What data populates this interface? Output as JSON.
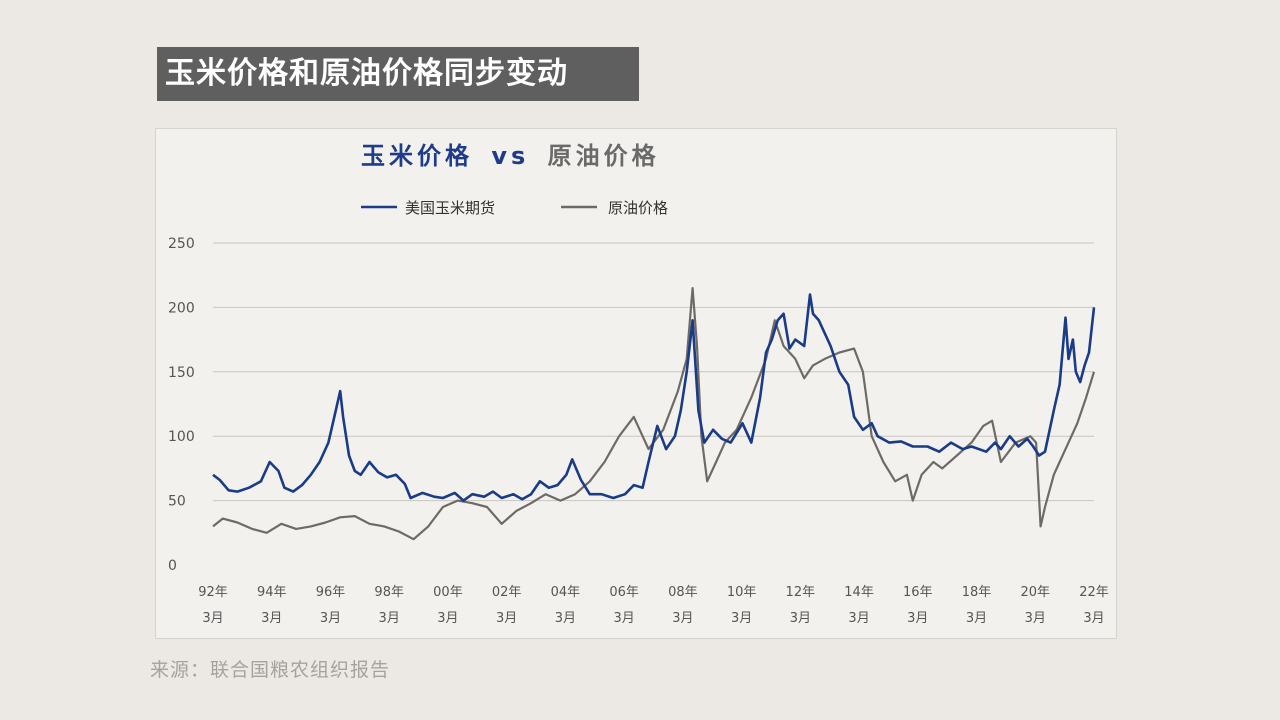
{
  "header": {
    "title": "玉米价格和原油价格同步变动"
  },
  "footer": {
    "source": "来源：联合国粮农组织报告"
  },
  "colors": {
    "corn": "#1a3b86",
    "oil": "#6e6a66",
    "grid": "#c9c6c1",
    "title_blue": "#1f3c8a",
    "title_gray": "#6a6a6a"
  },
  "chart_data": {
    "type": "line",
    "title_part1": "玉米价格",
    "title_vs": "vs",
    "title_part2": "原油价格",
    "xlabel": "",
    "ylabel": "",
    "ylim": [
      0,
      250
    ],
    "xlim": [
      1992.17,
      2022.17
    ],
    "yticks": [
      0,
      50,
      100,
      150,
      200,
      250
    ],
    "grid": true,
    "legend": "top-left",
    "xtick_labels": [
      {
        "year": 1992.17,
        "top": "92年",
        "bottom": "3月"
      },
      {
        "year": 1994.17,
        "top": "94年",
        "bottom": "3月"
      },
      {
        "year": 1996.17,
        "top": "96年",
        "bottom": "3月"
      },
      {
        "year": 1998.17,
        "top": "98年",
        "bottom": "3月"
      },
      {
        "year": 2000.17,
        "top": "00年",
        "bottom": "3月"
      },
      {
        "year": 2002.17,
        "top": "02年",
        "bottom": "3月"
      },
      {
        "year": 2004.17,
        "top": "04年",
        "bottom": "3月"
      },
      {
        "year": 2006.17,
        "top": "06年",
        "bottom": "3月"
      },
      {
        "year": 2008.17,
        "top": "08年",
        "bottom": "3月"
      },
      {
        "year": 2010.17,
        "top": "10年",
        "bottom": "3月"
      },
      {
        "year": 2012.17,
        "top": "12年",
        "bottom": "3月"
      },
      {
        "year": 2014.17,
        "top": "14年",
        "bottom": "3月"
      },
      {
        "year": 2016.17,
        "top": "16年",
        "bottom": "3月"
      },
      {
        "year": 2018.17,
        "top": "18年",
        "bottom": "3月"
      },
      {
        "year": 2020.17,
        "top": "20年",
        "bottom": "3月"
      },
      {
        "year": 2022.17,
        "top": "22年",
        "bottom": "3月"
      }
    ],
    "series": [
      {
        "name": "美国玉米期货",
        "x": [
          1992.17,
          1992.4,
          1992.7,
          1993.0,
          1993.4,
          1993.8,
          1994.1,
          1994.4,
          1994.6,
          1994.9,
          1995.2,
          1995.5,
          1995.8,
          1996.1,
          1996.3,
          1996.5,
          1996.6,
          1996.8,
          1997.0,
          1997.2,
          1997.5,
          1997.8,
          1998.1,
          1998.4,
          1998.7,
          1998.9,
          1999.3,
          1999.7,
          2000.0,
          2000.4,
          2000.7,
          2001.0,
          2001.4,
          2001.7,
          2002.0,
          2002.4,
          2002.7,
          2003.0,
          2003.3,
          2003.6,
          2003.9,
          2004.2,
          2004.4,
          2004.7,
          2005.0,
          2005.4,
          2005.8,
          2006.2,
          2006.5,
          2006.8,
          2007.0,
          2007.3,
          2007.6,
          2007.9,
          2008.1,
          2008.3,
          2008.5,
          2008.7,
          2008.9,
          2009.2,
          2009.5,
          2009.8,
          2010.2,
          2010.5,
          2010.8,
          2011.0,
          2011.2,
          2011.4,
          2011.6,
          2011.8,
          2012.0,
          2012.3,
          2012.5,
          2012.6,
          2012.8,
          2013.0,
          2013.2,
          2013.5,
          2013.8,
          2014.0,
          2014.3,
          2014.6,
          2014.8,
          2015.2,
          2015.6,
          2016.0,
          2016.5,
          2016.9,
          2017.3,
          2017.7,
          2018.0,
          2018.5,
          2018.8,
          2019.0,
          2019.3,
          2019.6,
          2019.9,
          2020.1,
          2020.3,
          2020.5,
          2020.8,
          2021.0,
          2021.2,
          2021.3,
          2021.45,
          2021.55,
          2021.7,
          2021.85,
          2022.0,
          2022.17
        ],
        "y": [
          70,
          66,
          58,
          57,
          60,
          65,
          80,
          73,
          60,
          57,
          62,
          70,
          80,
          95,
          115,
          135,
          115,
          85,
          73,
          70,
          80,
          72,
          68,
          70,
          63,
          52,
          56,
          53,
          52,
          56,
          50,
          55,
          53,
          57,
          52,
          55,
          51,
          55,
          65,
          60,
          62,
          70,
          82,
          66,
          55,
          55,
          52,
          55,
          62,
          60,
          80,
          108,
          90,
          100,
          120,
          150,
          190,
          120,
          95,
          105,
          98,
          95,
          110,
          95,
          130,
          165,
          175,
          190,
          195,
          168,
          175,
          170,
          210,
          195,
          190,
          180,
          170,
          150,
          140,
          115,
          105,
          110,
          100,
          95,
          96,
          92,
          92,
          88,
          95,
          90,
          92,
          88,
          95,
          90,
          100,
          92,
          98,
          92,
          85,
          88,
          120,
          140,
          192,
          160,
          175,
          150,
          142,
          155,
          165,
          200
        ]
      },
      {
        "name": "原油价格",
        "x": [
          1992.17,
          1992.5,
          1993.0,
          1993.5,
          1994.0,
          1994.5,
          1995.0,
          1995.5,
          1996.0,
          1996.5,
          1997.0,
          1997.5,
          1998.0,
          1998.5,
          1999.0,
          1999.5,
          2000.0,
          2000.5,
          2001.0,
          2001.5,
          2002.0,
          2002.5,
          2003.0,
          2003.5,
          2004.0,
          2004.5,
          2005.0,
          2005.5,
          2006.0,
          2006.5,
          2007.0,
          2007.5,
          2008.0,
          2008.3,
          2008.5,
          2008.65,
          2008.8,
          2009.0,
          2009.3,
          2009.6,
          2010.0,
          2010.5,
          2011.0,
          2011.3,
          2011.6,
          2012.0,
          2012.3,
          2012.6,
          2013.0,
          2013.5,
          2014.0,
          2014.3,
          2014.6,
          2015.0,
          2015.4,
          2015.8,
          2016.0,
          2016.3,
          2016.7,
          2017.0,
          2017.5,
          2018.0,
          2018.4,
          2018.7,
          2019.0,
          2019.5,
          2020.0,
          2020.2,
          2020.35,
          2020.5,
          2020.8,
          2021.0,
          2021.3,
          2021.6,
          2021.9,
          2022.17
        ],
        "y": [
          30,
          36,
          33,
          28,
          25,
          32,
          28,
          30,
          33,
          37,
          38,
          32,
          30,
          26,
          20,
          30,
          45,
          50,
          48,
          45,
          32,
          42,
          48,
          55,
          50,
          55,
          65,
          80,
          100,
          115,
          90,
          105,
          135,
          160,
          215,
          170,
          100,
          65,
          80,
          95,
          105,
          130,
          160,
          190,
          170,
          160,
          145,
          155,
          160,
          165,
          168,
          150,
          100,
          80,
          65,
          70,
          50,
          70,
          80,
          75,
          85,
          95,
          108,
          112,
          80,
          95,
          100,
          95,
          30,
          45,
          70,
          80,
          95,
          110,
          130,
          150
        ]
      }
    ]
  }
}
